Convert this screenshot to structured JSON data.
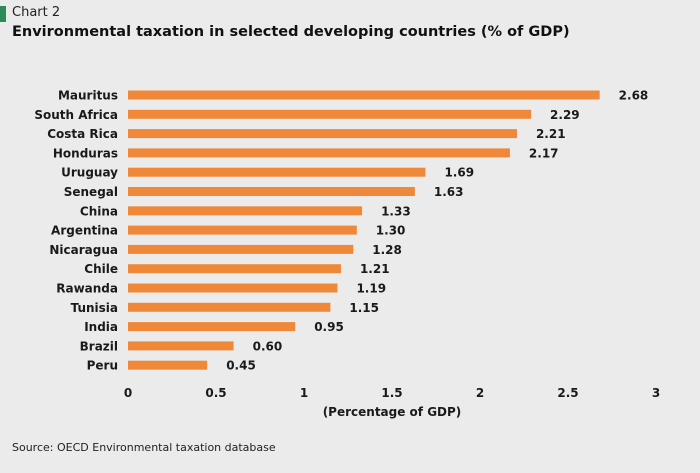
{
  "header": {
    "chart_label": "Chart 2",
    "title": "Environmental taxation in selected developing countries (% of GDP)"
  },
  "source": "Source: OECD Environmental taxation database",
  "colors": {
    "bar": "#f0883a",
    "background": "#ebebeb",
    "accent": "#2e8b57"
  },
  "chart_data": {
    "type": "bar",
    "orientation": "horizontal",
    "title": "Environmental taxation in selected developing countries (% of GDP)",
    "xlabel": "(Percentage of GDP)",
    "ylabel": "",
    "categories": [
      "Mauritus",
      "South Africa",
      "Costa Rica",
      "Honduras",
      "Uruguay",
      "Senegal",
      "China",
      "Argentina",
      "Nicaragua",
      "Chile",
      "Rawanda",
      "Tunisia",
      "India",
      "Brazil",
      "Peru"
    ],
    "values": [
      2.68,
      2.29,
      2.21,
      2.17,
      1.69,
      1.63,
      1.33,
      1.3,
      1.28,
      1.21,
      1.19,
      1.15,
      0.95,
      0.6,
      0.45
    ],
    "value_labels": [
      "2.68",
      "2.29",
      "2.21",
      "2.17",
      "1.69",
      "1.63",
      "1.33",
      "1.30",
      "1.28",
      "1.21",
      "1.19",
      "1.15",
      "0.95",
      "0.60",
      "0.45"
    ],
    "xlim": [
      0,
      3
    ],
    "xticks": [
      0,
      0.5,
      1,
      1.5,
      2,
      2.5,
      3
    ],
    "xtick_labels": [
      "0",
      "0.5",
      "1",
      "1.5",
      "2",
      "2.5",
      "3"
    ],
    "grid": false,
    "legend": "none"
  }
}
